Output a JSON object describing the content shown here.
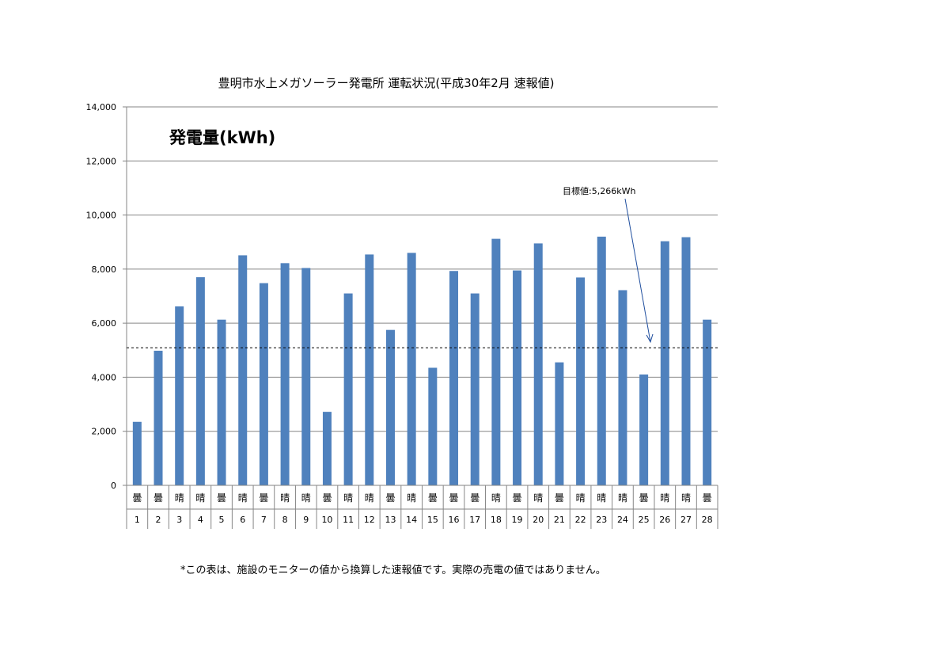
{
  "chart_data": {
    "type": "bar",
    "title": "豊明市水上メガソーラー発電所 運転状況(平成30年2月 速報値)",
    "ylabel": "発電量(kWh)",
    "xlabel": "",
    "ylim": [
      0,
      14000
    ],
    "y_ticks": [
      0,
      2000,
      4000,
      6000,
      8000,
      10000,
      12000,
      14000
    ],
    "y_tick_labels": [
      "0",
      "2,000",
      "4,000",
      "6,000",
      "8,000",
      "10,000",
      "12,000",
      "14,000"
    ],
    "grid": true,
    "categories": [
      "1",
      "2",
      "3",
      "4",
      "5",
      "6",
      "7",
      "8",
      "9",
      "10",
      "11",
      "12",
      "13",
      "14",
      "15",
      "16",
      "17",
      "18",
      "19",
      "20",
      "21",
      "22",
      "23",
      "24",
      "25",
      "26",
      "27",
      "28"
    ],
    "weather": [
      "曇",
      "曇",
      "晴",
      "晴",
      "曇",
      "晴",
      "曇",
      "晴",
      "晴",
      "曇",
      "晴",
      "晴",
      "曇",
      "晴",
      "曇",
      "曇",
      "曇",
      "晴",
      "曇",
      "晴",
      "曇",
      "晴",
      "晴",
      "晴",
      "曇",
      "晴",
      "晴",
      "曇"
    ],
    "values": [
      2350,
      4980,
      6620,
      7700,
      6130,
      8510,
      7480,
      8220,
      8040,
      2720,
      7100,
      8540,
      5750,
      8600,
      4350,
      7930,
      7100,
      9120,
      7950,
      8950,
      4550,
      7690,
      9200,
      7220,
      4100,
      9030,
      9180,
      6130
    ],
    "target": {
      "value": 5266,
      "label": "目標値:5,266kWh"
    },
    "bar_color": "#4f81bd"
  },
  "footnote": "*この表は、施設のモニターの値から換算した速報値です。実際の売電の値ではありません。"
}
